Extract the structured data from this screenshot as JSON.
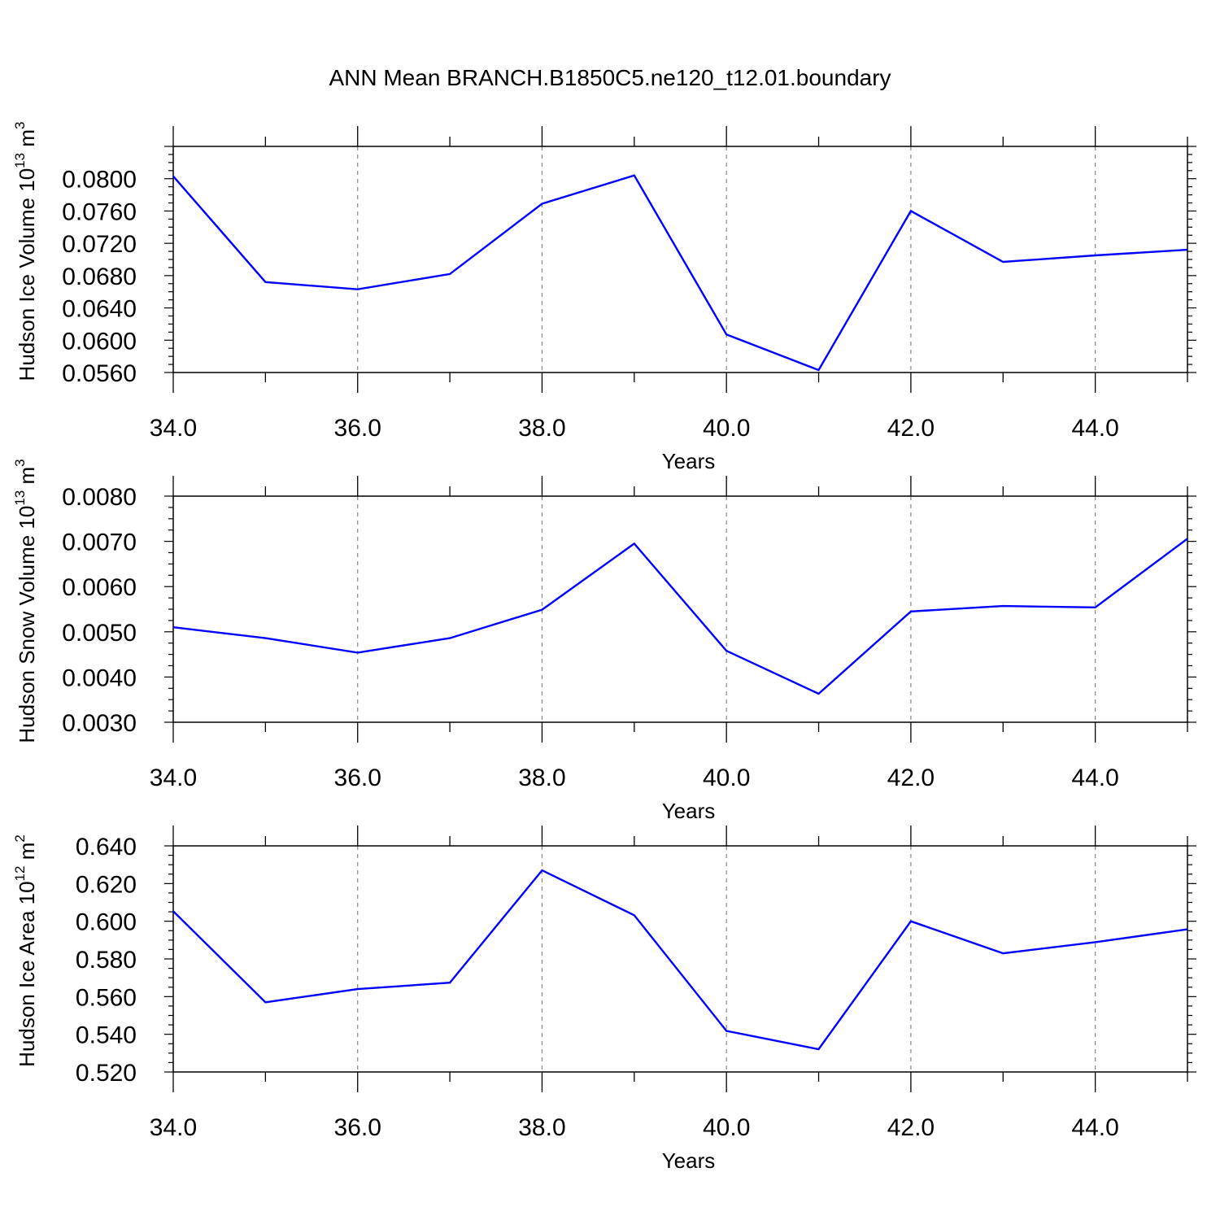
{
  "title": "ANN Mean BRANCH.B1850C5.ne120_t12.01.boundary",
  "line_color": "#0000ff",
  "chart_data": [
    {
      "type": "line",
      "name": "ice-volume",
      "xlabel": "Years",
      "ylabel": "Hudson Ice Volume 10",
      "ylabel_exp": "13",
      "ylabel_unit": " m",
      "ylabel_unit_exp": "3",
      "xlim": [
        34,
        45
      ],
      "ylim": [
        0.056,
        0.084
      ],
      "xticks": [
        "34.0",
        "36.0",
        "38.0",
        "40.0",
        "42.0",
        "44.0"
      ],
      "yticks": [
        "0.0560",
        "0.0600",
        "0.0640",
        "0.0680",
        "0.0720",
        "0.0760",
        "0.0800"
      ],
      "x": [
        34,
        35,
        36,
        37,
        38,
        39,
        40,
        41,
        42,
        43,
        44,
        45
      ],
      "y": [
        0.0803,
        0.0672,
        0.0663,
        0.0682,
        0.0769,
        0.0804,
        0.0607,
        0.0563,
        0.076,
        0.0697,
        0.0705,
        0.0712
      ]
    },
    {
      "type": "line",
      "name": "snow-volume",
      "xlabel": "Years",
      "ylabel": "Hudson Snow Volume 10",
      "ylabel_exp": "13",
      "ylabel_unit": " m",
      "ylabel_unit_exp": "3",
      "xlim": [
        34,
        45
      ],
      "ylim": [
        0.003,
        0.008
      ],
      "xticks": [
        "34.0",
        "36.0",
        "38.0",
        "40.0",
        "42.0",
        "44.0"
      ],
      "yticks": [
        "0.0030",
        "0.0040",
        "0.0050",
        "0.0060",
        "0.0070",
        "0.0080"
      ],
      "x": [
        34,
        35,
        36,
        37,
        38,
        39,
        40,
        41,
        42,
        43,
        44,
        45
      ],
      "y": [
        0.0051,
        0.00486,
        0.00454,
        0.00486,
        0.00549,
        0.00695,
        0.00458,
        0.00363,
        0.00545,
        0.00557,
        0.00554,
        0.00706
      ]
    },
    {
      "type": "line",
      "name": "ice-area",
      "xlabel": "Years",
      "ylabel": "Hudson Ice Area 10",
      "ylabel_exp": "12",
      "ylabel_unit": " m",
      "ylabel_unit_exp": "2",
      "xlim": [
        34,
        45
      ],
      "ylim": [
        0.52,
        0.64
      ],
      "xticks": [
        "34.0",
        "36.0",
        "38.0",
        "40.0",
        "42.0",
        "44.0"
      ],
      "yticks": [
        "0.520",
        "0.540",
        "0.560",
        "0.580",
        "0.600",
        "0.620",
        "0.640"
      ],
      "x": [
        34,
        35,
        36,
        37,
        38,
        39,
        40,
        41,
        42,
        43,
        44,
        45
      ],
      "y": [
        0.6053,
        0.557,
        0.564,
        0.5674,
        0.627,
        0.6032,
        0.5418,
        0.5321,
        0.6,
        0.583,
        0.5889,
        0.5957
      ]
    }
  ]
}
